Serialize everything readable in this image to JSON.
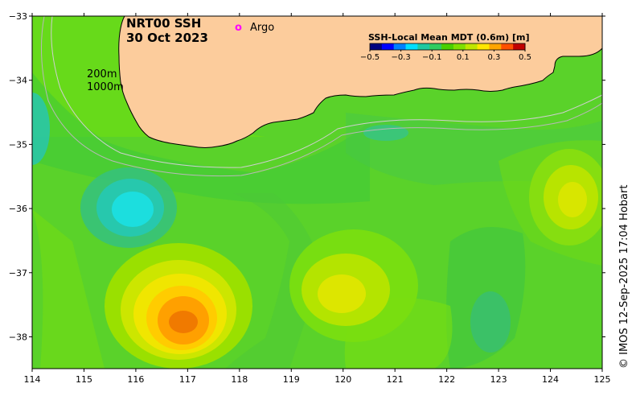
{
  "title": {
    "line1": "NRT00 SSH",
    "line2": "30 Oct 2023"
  },
  "legend": {
    "argo_symbol": "o",
    "argo_label": "Argo"
  },
  "isobaths": [
    "200m",
    "1000m"
  ],
  "colorbar": {
    "title": "SSH-Local Mean MDT (0.6m) [m]",
    "tick_labels": [
      "−0.5",
      "−0.3",
      "−0.1",
      "0.1",
      "0.3",
      "0.5"
    ],
    "colors": [
      "#00007f",
      "#0000ff",
      "#0080ff",
      "#00dfff",
      "#20c8a0",
      "#30cc60",
      "#4ad000",
      "#7fdf00",
      "#bfe600",
      "#ffe600",
      "#ffa500",
      "#ff5000",
      "#c00000"
    ]
  },
  "axes": {
    "x_ticks": [
      "114",
      "115",
      "116",
      "117",
      "118",
      "119",
      "120",
      "121",
      "122",
      "123",
      "124",
      "125"
    ],
    "y_ticks": [
      "−33",
      "−34",
      "−35",
      "−36",
      "−37",
      "−38"
    ]
  },
  "credit": "© IMOS 12-Sep-2025 17:04 Hobart",
  "colors": {
    "land": "#fccc9c",
    "ocean_base": "#5ad22a",
    "argo": "#ff00ff"
  },
  "map_features": {
    "cool_eddy": "cyan low west of 116E, 36.2S",
    "warm_eddy": "orange high near 116.9E, 37.8S",
    "secondary_highs": [
      "120.0E 37.4S",
      "124.5E 36.0S"
    ]
  }
}
